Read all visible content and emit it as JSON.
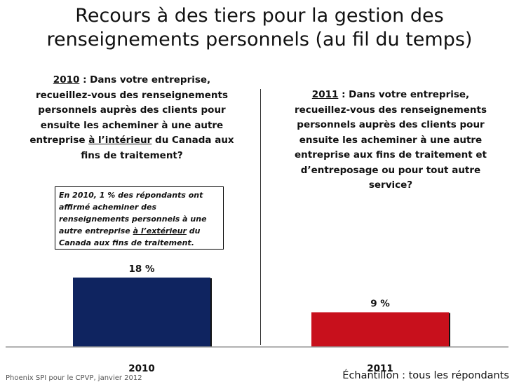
{
  "title_line1": "Recours à des tiers pour la gestion des",
  "title_line2": "renseignements personnels (au fil du temps)",
  "q2010": {
    "year": "2010",
    "lead": " : Dans votre entreprise, recueillez-vous des renseignements personnels auprès des clients pour ensuite les acheminer à une autre entreprise ",
    "emph": "à l’intérieur",
    "tail": " du Canada aux fins de traitement?"
  },
  "q2011": {
    "year": "2011",
    "text": " : Dans votre entreprise, recueillez-vous des renseignements personnels auprès des clients pour ensuite les acheminer à une autre entreprise aux fins de traitement et d’entreposage ou pour tout autre service?"
  },
  "note": {
    "lead": "En 2010, 1 % des répondants ont affirmé acheminer des renseignements personnels à une autre entreprise ",
    "emph": "à l’extérieur",
    "tail": " du Canada aux fins de traitement."
  },
  "footer_left": "Phoenix SPI pour le CPVP, janvier 2012",
  "footer_right": "Échantillon : tous les répondants",
  "chart_data": {
    "type": "bar",
    "categories": [
      "2010",
      "2011"
    ],
    "values": [
      18,
      9
    ],
    "value_labels": [
      "18 %",
      "9 %"
    ],
    "unit": "%",
    "colors": [
      "#0f2460",
      "#c8101c"
    ],
    "ylim": [
      0,
      20
    ]
  }
}
